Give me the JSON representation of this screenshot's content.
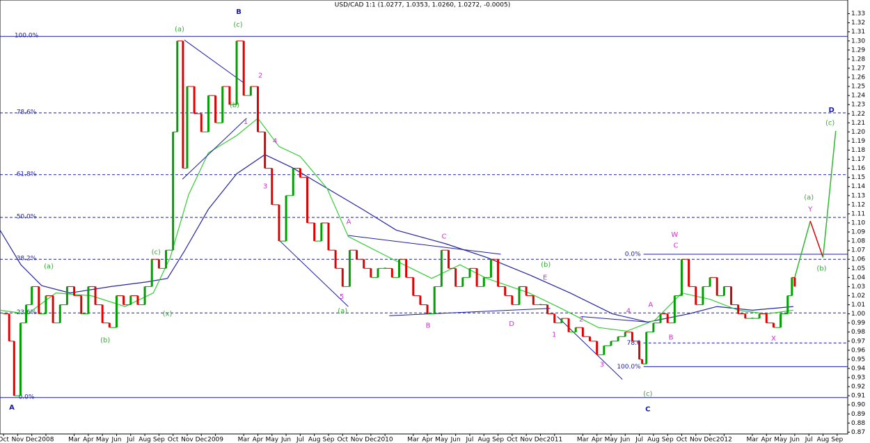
{
  "chart_data": {
    "type": "line",
    "title": "USD/CAD 1:1 (1.0277, 1.0353, 1.0260, 1.0272, -0.0005)",
    "xlim": [
      -0.25,
      59.75
    ],
    "ylim": [
      0.868,
      1.345
    ],
    "xticks": [
      {
        "value": 0,
        "label": "Oct"
      },
      {
        "value": 1,
        "label": "Nov"
      },
      {
        "value": 2,
        "label": "Dec"
      },
      {
        "value": 3,
        "label": "2008"
      },
      {
        "value": 5,
        "label": "Mar"
      },
      {
        "value": 6,
        "label": "Apr"
      },
      {
        "value": 7,
        "label": "May"
      },
      {
        "value": 8,
        "label": "Jun"
      },
      {
        "value": 9,
        "label": "Jul"
      },
      {
        "value": 10,
        "label": "Aug"
      },
      {
        "value": 11,
        "label": "Sep"
      },
      {
        "value": 12,
        "label": "Oct"
      },
      {
        "value": 13,
        "label": "Nov"
      },
      {
        "value": 14,
        "label": "Dec"
      },
      {
        "value": 15,
        "label": "2009"
      },
      {
        "value": 17,
        "label": "Mar"
      },
      {
        "value": 18,
        "label": "Apr"
      },
      {
        "value": 19,
        "label": "May"
      },
      {
        "value": 20,
        "label": "Jun"
      },
      {
        "value": 21,
        "label": "Jul"
      },
      {
        "value": 22,
        "label": "Aug"
      },
      {
        "value": 23,
        "label": "Sep"
      },
      {
        "value": 24,
        "label": "Oct"
      },
      {
        "value": 25,
        "label": "Nov"
      },
      {
        "value": 26,
        "label": "Dec"
      },
      {
        "value": 27,
        "label": "2010"
      },
      {
        "value": 29,
        "label": "Mar"
      },
      {
        "value": 30,
        "label": "Apr"
      },
      {
        "value": 31,
        "label": "May"
      },
      {
        "value": 32,
        "label": "Jun"
      },
      {
        "value": 33,
        "label": "Jul"
      },
      {
        "value": 34,
        "label": "Aug"
      },
      {
        "value": 35,
        "label": "Sep"
      },
      {
        "value": 36,
        "label": "Oct"
      },
      {
        "value": 37,
        "label": "Nov"
      },
      {
        "value": 38,
        "label": "Dec"
      },
      {
        "value": 39,
        "label": "2011"
      },
      {
        "value": 41,
        "label": "Mar"
      },
      {
        "value": 42,
        "label": "Apr"
      },
      {
        "value": 43,
        "label": "May"
      },
      {
        "value": 44,
        "label": "Jun"
      },
      {
        "value": 45,
        "label": "Jul"
      },
      {
        "value": 46,
        "label": "Aug"
      },
      {
        "value": 47,
        "label": "Sep"
      },
      {
        "value": 48,
        "label": "Oct"
      },
      {
        "value": 49,
        "label": "Nov"
      },
      {
        "value": 50,
        "label": "Dec"
      },
      {
        "value": 51,
        "label": "2012"
      },
      {
        "value": 53,
        "label": "Mar"
      },
      {
        "value": 54,
        "label": "Apr"
      },
      {
        "value": 55,
        "label": "May"
      },
      {
        "value": 56,
        "label": "Jun"
      },
      {
        "value": 57,
        "label": "Jul"
      },
      {
        "value": 58,
        "label": "Aug"
      },
      {
        "value": 59,
        "label": "Sep"
      }
    ],
    "yticks": [
      0.87,
      0.88,
      0.89,
      {
        "value": 0.9,
        "label": "0.90"
      },
      0.91,
      0.92,
      0.93,
      0.94,
      0.95,
      0.96,
      0.97,
      0.98,
      0.99,
      {
        "value": 1.0,
        "label": "1.00"
      },
      1.01,
      1.02,
      1.03,
      1.04,
      1.05,
      1.06,
      1.07,
      1.08,
      1.09,
      {
        "value": 1.1,
        "label": "1.10"
      },
      1.11,
      1.12,
      1.13,
      1.14,
      1.15,
      1.16,
      1.17,
      1.18,
      1.19,
      {
        "value": 1.2,
        "label": "1.20"
      },
      1.21,
      1.22,
      1.23,
      1.24,
      1.25,
      1.26,
      1.27,
      1.28,
      1.29,
      {
        "value": 1.3,
        "label": "1.30"
      },
      1.31,
      1.32,
      1.33
    ],
    "price": {
      "up_color": "#00a000",
      "down_color": "#e00000",
      "x": [
        0,
        0.4,
        0.75,
        1.2,
        1.6,
        2,
        2.5,
        3,
        3.5,
        4,
        4.5,
        5,
        5.5,
        6,
        6.5,
        7,
        7.5,
        8,
        8.5,
        9,
        9.5,
        10,
        10.5,
        11,
        11.5,
        12,
        12.3,
        12.7,
        13,
        13.5,
        14,
        14.5,
        15,
        15.5,
        16,
        16.5,
        17,
        17.5,
        18,
        18.5,
        19,
        19.5,
        20,
        20.5,
        21,
        21.5,
        22,
        22.5,
        23,
        23.5,
        24,
        24.5,
        25,
        25.5,
        26,
        26.5,
        27,
        27.5,
        28,
        28.5,
        29,
        29.5,
        30,
        30.5,
        31,
        31.5,
        32,
        32.5,
        33,
        33.5,
        34,
        34.5,
        35,
        35.5,
        36,
        36.5,
        37,
        37.5,
        38,
        38.5,
        39,
        39.5,
        40,
        40.5,
        41,
        41.5,
        42,
        42.5,
        43,
        43.5,
        44,
        44.5,
        45,
        45.2,
        45.5,
        46,
        46.5,
        47,
        47.5,
        48,
        48.5,
        49,
        49.5,
        50,
        50.5,
        51,
        51.5,
        52,
        52.5,
        53,
        53.5,
        54,
        54.5,
        55,
        55.5,
        55.8,
        56
      ],
      "values": [
        1.0,
        0.97,
        0.91,
        0.99,
        1.01,
        1.03,
        1.0,
        1.02,
        0.99,
        1.01,
        1.03,
        1.02,
        1.0,
        1.03,
        1.01,
        0.99,
        0.985,
        1.02,
        1.01,
        1.02,
        1.01,
        1.03,
        1.06,
        1.05,
        1.07,
        1.2,
        1.3,
        1.16,
        1.25,
        1.22,
        1.2,
        1.24,
        1.21,
        1.25,
        1.23,
        1.3,
        1.24,
        1.25,
        1.2,
        1.16,
        1.12,
        1.08,
        1.13,
        1.16,
        1.15,
        1.1,
        1.08,
        1.1,
        1.07,
        1.05,
        1.03,
        1.07,
        1.06,
        1.05,
        1.04,
        1.05,
        1.05,
        1.04,
        1.06,
        1.04,
        1.02,
        1.01,
        1.0,
        1.03,
        1.07,
        1.05,
        1.03,
        1.04,
        1.05,
        1.03,
        1.04,
        1.06,
        1.03,
        1.02,
        1.01,
        1.03,
        1.02,
        1.01,
        1.01,
        1.0,
        0.99,
        0.995,
        0.98,
        0.985,
        0.975,
        0.97,
        0.955,
        0.965,
        0.97,
        0.975,
        0.98,
        0.97,
        0.95,
        0.945,
        0.98,
        0.99,
        1.0,
        0.99,
        1.02,
        1.06,
        1.03,
        1.01,
        1.03,
        1.04,
        1.02,
        1.03,
        1.01,
        1.0,
        0.995,
        0.995,
        1.0,
        0.99,
        0.985,
        1.0,
        1.02,
        1.04,
        1.03
      ]
    },
    "moving_averages": [
      {
        "color": "#2424a0",
        "x": [
          -0.25,
          1.23,
          2.7,
          4.7,
          7.6,
          10.1,
          11.6,
          12.8,
          14.5,
          16.5,
          18.5,
          20.4,
          22.9,
          25.4,
          27.8,
          31.3,
          34.2,
          37.2,
          40.1,
          43.1,
          45.6,
          48.5,
          50.5,
          53,
          55.9
        ],
        "values": [
          1.092,
          1.054,
          1.031,
          1.023,
          1.03,
          1.035,
          1.039,
          1.069,
          1.115,
          1.154,
          1.175,
          1.161,
          1.138,
          1.115,
          1.092,
          1.077,
          1.062,
          1.043,
          1.023,
          1.0,
          0.991,
          1.0,
          1.008,
          1.004,
          1.008
        ]
      },
      {
        "color": "#33cc33",
        "x": [
          -0.25,
          1.7,
          3.7,
          6.2,
          8.6,
          10.6,
          11.8,
          13.1,
          14.5,
          16.5,
          18,
          19.5,
          21,
          22.9,
          24.4,
          27.3,
          30.3,
          32.3,
          34.2,
          37.2,
          39.2,
          42.1,
          44.1,
          46.1,
          48,
          50,
          52,
          54,
          55.9
        ],
        "values": [
          1.004,
          1.0,
          1.023,
          1.02,
          1.008,
          1.023,
          1.062,
          1.131,
          1.177,
          1.196,
          1.215,
          1.184,
          1.173,
          1.138,
          1.085,
          1.062,
          1.039,
          1.054,
          1.039,
          1.023,
          1.008,
          0.985,
          0.981,
          0.993,
          1.023,
          1.016,
          1.004,
          1.0,
          1.004
        ]
      }
    ],
    "projection": {
      "x": [
        56,
        57.1,
        58,
        58.9
      ],
      "values": [
        1.04,
        1.102,
        1.062,
        1.201
      ],
      "colors": [
        "#2db82d",
        "#e00000",
        "#2db82d"
      ]
    },
    "level_color": "#1a1aa8",
    "levels": [
      {
        "label": "100.0%",
        "value": 1.305,
        "start": -0.25,
        "style": "solid"
      },
      {
        "label": "78.6%",
        "value": 1.221,
        "start": -0.25,
        "style": "dashed"
      },
      {
        "label": "61.8%",
        "value": 1.153,
        "start": -0.25,
        "style": "dashed"
      },
      {
        "label": "50.0%",
        "value": 1.106,
        "start": -0.25,
        "style": "dashed"
      },
      {
        "label": "38.2%",
        "value": 1.06,
        "start": -0.25,
        "style": "dashed"
      },
      {
        "label": "23.6%",
        "value": 1.001,
        "start": -0.25,
        "style": "dashed"
      },
      {
        "label": "0.0%",
        "value": 0.908,
        "start": -0.25,
        "style": "solid"
      },
      {
        "label": "0.0%",
        "value": 1.0655,
        "start": 45.3,
        "style": "solid"
      },
      {
        "label": "78.6",
        "value": 0.968,
        "start": 45.3,
        "style": "dashed"
      },
      {
        "label": "100.0%",
        "value": 0.942,
        "start": 45.3,
        "style": "solid"
      }
    ],
    "trendlines": [
      {
        "x": [
          12.8,
          17
        ],
        "values": [
          1.301,
          1.254
        ]
      },
      {
        "x": [
          12.66,
          17.2
        ],
        "values": [
          1.148,
          1.215
        ]
      },
      {
        "x": [
          19.5,
          24.4
        ],
        "values": [
          1.081,
          1.008
        ]
      },
      {
        "x": [
          24.4,
          35.2
        ],
        "values": [
          1.0862,
          1.0655
        ]
      },
      {
        "x": [
          27.3,
          38.7
        ],
        "values": [
          0.998,
          1.006
        ]
      },
      {
        "x": [
          39.2,
          43.8
        ],
        "values": [
          0.997,
          0.928
        ]
      },
      {
        "x": [
          40.9,
          45.6
        ],
        "values": [
          0.997,
          0.991
        ]
      }
    ],
    "annotations": [
      {
        "text": "A",
        "x": 0.59,
        "y": 0.897,
        "color": "#1a1aa8"
      },
      {
        "text": "B",
        "x": 16.65,
        "y": 1.332,
        "color": "#1a1aa8"
      },
      {
        "text": "C",
        "x": 45.6,
        "y": 0.895,
        "color": "#1a1aa8"
      },
      {
        "text": "D",
        "x": 58.6,
        "y": 1.224,
        "color": "#1a1aa8"
      },
      {
        "text": "(a)",
        "x": 12.46,
        "y": 1.313,
        "color": "#3aa83a"
      },
      {
        "text": "(c)",
        "x": 16.6,
        "y": 1.318,
        "color": "#3aa83a"
      },
      {
        "text": "(b)",
        "x": 16.35,
        "y": 1.2295,
        "color": "#3aa83a"
      },
      {
        "text": "(a)",
        "x": 3.2,
        "y": 1.052,
        "color": "#3aa83a"
      },
      {
        "text": "(b)",
        "x": 7.2,
        "y": 0.971,
        "color": "#3aa83a"
      },
      {
        "text": "(c)",
        "x": 10.8,
        "y": 1.068,
        "color": "#3aa83a"
      },
      {
        "text": "(x)",
        "x": 11.6,
        "y": 1.0,
        "color": "#3aa83a"
      },
      {
        "text": "(a)",
        "x": 24.0,
        "y": 1.003,
        "color": "#3aa83a"
      },
      {
        "text": "(b)",
        "x": 38.38,
        "y": 1.054,
        "color": "#3aa83a"
      },
      {
        "text": "(c)",
        "x": 45.6,
        "y": 0.912,
        "color": "#3aa83a"
      },
      {
        "text": "(a)",
        "x": 57.0,
        "y": 1.128,
        "color": "#3aa83a"
      },
      {
        "text": "(b)",
        "x": 57.9,
        "y": 1.05,
        "color": "#3aa83a"
      },
      {
        "text": "(c)",
        "x": 58.5,
        "y": 1.21,
        "color": "#3aa83a"
      },
      {
        "text": "1",
        "x": 17.14,
        "y": 1.211,
        "color": "#d22ed2"
      },
      {
        "text": "2",
        "x": 18.18,
        "y": 1.262,
        "color": "#d22ed2"
      },
      {
        "text": "3",
        "x": 18.52,
        "y": 1.14,
        "color": "#d22ed2"
      },
      {
        "text": "4",
        "x": 19.21,
        "y": 1.19,
        "color": "#d22ed2"
      },
      {
        "text": "5",
        "x": 23.94,
        "y": 1.019,
        "color": "#d22ed2"
      },
      {
        "text": "A",
        "x": 24.43,
        "y": 1.101,
        "color": "#d22ed2"
      },
      {
        "text": "B",
        "x": 30.05,
        "y": 0.987,
        "color": "#d22ed2"
      },
      {
        "text": "C",
        "x": 31.18,
        "y": 1.085,
        "color": "#d22ed2"
      },
      {
        "text": "D",
        "x": 35.96,
        "y": 0.989,
        "color": "#d22ed2"
      },
      {
        "text": "E",
        "x": 38.33,
        "y": 1.04,
        "color": "#d22ed2"
      },
      {
        "text": "1",
        "x": 38.97,
        "y": 0.977,
        "color": "#d22ed2"
      },
      {
        "text": "2",
        "x": 40.89,
        "y": 0.994,
        "color": "#d22ed2"
      },
      {
        "text": "3",
        "x": 42.36,
        "y": 0.944,
        "color": "#d22ed2"
      },
      {
        "text": "4",
        "x": 44.23,
        "y": 1.003,
        "color": "#d22ed2"
      },
      {
        "text": "A",
        "x": 45.8,
        "y": 1.01,
        "color": "#d22ed2"
      },
      {
        "text": "B",
        "x": 47.24,
        "y": 0.974,
        "color": "#d22ed2"
      },
      {
        "text": "W",
        "x": 47.5,
        "y": 1.087,
        "color": "#d22ed2"
      },
      {
        "text": "C",
        "x": 47.58,
        "y": 1.075,
        "color": "#d22ed2"
      },
      {
        "text": "X",
        "x": 54.5,
        "y": 0.973,
        "color": "#d22ed2"
      },
      {
        "text": "Y",
        "x": 57.1,
        "y": 1.115,
        "color": "#d22ed2"
      }
    ]
  }
}
